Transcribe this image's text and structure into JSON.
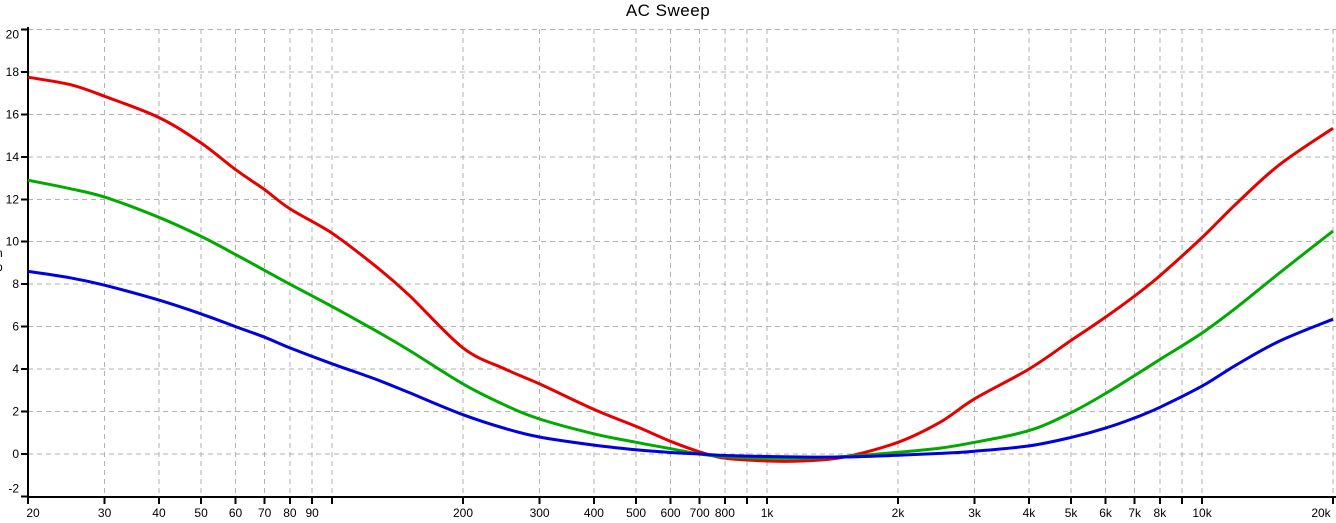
{
  "y_axis_title_fragment": [
    "n",
    "p"
  ],
  "colors": {
    "background": "#ffffff",
    "grid": "#b2b2b2",
    "axis": "#000000",
    "text": "#000000",
    "trace_red": "#e60000",
    "trace_green": "#00aa00",
    "trace_blue": "#0000e0"
  },
  "chart_data": {
    "type": "line",
    "title": "AC Sweep",
    "grid": true,
    "legend": "none",
    "x_axis": {
      "scale": "log",
      "min": 20,
      "max": 20000,
      "tick_values": [
        20,
        30,
        40,
        50,
        60,
        70,
        80,
        90,
        100,
        200,
        300,
        400,
        500,
        600,
        700,
        800,
        900,
        1000,
        2000,
        3000,
        4000,
        5000,
        6000,
        7000,
        8000,
        9000,
        10000,
        20000
      ],
      "tick_labels": [
        "20",
        "30",
        "40",
        "50",
        "60",
        "70",
        "80",
        "90",
        "",
        "200",
        "300",
        "400",
        "500",
        "600",
        "700",
        "800",
        "",
        "1k",
        "2k",
        "3k",
        "4k",
        "5k",
        "6k",
        "7k",
        "8k",
        "",
        "10k",
        "20k"
      ]
    },
    "y_axis": {
      "scale": "linear",
      "min": -2,
      "max": 20,
      "tick_values": [
        20,
        18,
        16,
        14,
        12,
        10,
        8,
        6,
        4,
        2,
        0,
        -2
      ],
      "tick_labels": [
        "20",
        "18",
        "16",
        "14",
        "12",
        "10",
        "8",
        "6",
        "4",
        "2",
        "0",
        "-2"
      ]
    },
    "series": [
      {
        "name": "red-trace",
        "color": "#e60000",
        "points": [
          [
            20,
            17.75
          ],
          [
            25,
            17.4
          ],
          [
            30,
            16.85
          ],
          [
            40,
            15.85
          ],
          [
            50,
            14.65
          ],
          [
            60,
            13.4
          ],
          [
            70,
            12.45
          ],
          [
            80,
            11.55
          ],
          [
            100,
            10.4
          ],
          [
            125,
            8.9
          ],
          [
            150,
            7.5
          ],
          [
            200,
            5.0
          ],
          [
            250,
            4.0
          ],
          [
            300,
            3.3
          ],
          [
            400,
            2.1
          ],
          [
            500,
            1.3
          ],
          [
            600,
            0.6
          ],
          [
            700,
            0.1
          ],
          [
            800,
            -0.2
          ],
          [
            1000,
            -0.33
          ],
          [
            1200,
            -0.33
          ],
          [
            1500,
            -0.15
          ],
          [
            2000,
            0.55
          ],
          [
            2500,
            1.5
          ],
          [
            3000,
            2.6
          ],
          [
            4000,
            4.0
          ],
          [
            5000,
            5.35
          ],
          [
            6000,
            6.45
          ],
          [
            7000,
            7.45
          ],
          [
            8000,
            8.4
          ],
          [
            10000,
            10.2
          ],
          [
            12000,
            11.8
          ],
          [
            15000,
            13.6
          ],
          [
            20000,
            15.35
          ]
        ]
      },
      {
        "name": "green-trace",
        "color": "#00aa00",
        "points": [
          [
            20,
            12.9
          ],
          [
            25,
            12.5
          ],
          [
            30,
            12.1
          ],
          [
            40,
            11.15
          ],
          [
            50,
            10.25
          ],
          [
            60,
            9.4
          ],
          [
            70,
            8.65
          ],
          [
            80,
            8.0
          ],
          [
            100,
            6.95
          ],
          [
            125,
            5.85
          ],
          [
            150,
            4.9
          ],
          [
            200,
            3.3
          ],
          [
            250,
            2.3
          ],
          [
            300,
            1.65
          ],
          [
            400,
            0.95
          ],
          [
            500,
            0.55
          ],
          [
            600,
            0.25
          ],
          [
            700,
            0.0
          ],
          [
            800,
            -0.13
          ],
          [
            1000,
            -0.2
          ],
          [
            1200,
            -0.2
          ],
          [
            1500,
            -0.12
          ],
          [
            2000,
            0.08
          ],
          [
            2500,
            0.28
          ],
          [
            3000,
            0.55
          ],
          [
            4000,
            1.1
          ],
          [
            5000,
            1.95
          ],
          [
            6000,
            2.85
          ],
          [
            7000,
            3.7
          ],
          [
            8000,
            4.45
          ],
          [
            10000,
            5.7
          ],
          [
            12000,
            6.9
          ],
          [
            15000,
            8.5
          ],
          [
            20000,
            10.5
          ]
        ]
      },
      {
        "name": "blue-trace",
        "color": "#0000e0",
        "points": [
          [
            20,
            8.6
          ],
          [
            25,
            8.3
          ],
          [
            30,
            7.95
          ],
          [
            40,
            7.25
          ],
          [
            50,
            6.6
          ],
          [
            60,
            6.0
          ],
          [
            70,
            5.5
          ],
          [
            80,
            5.0
          ],
          [
            100,
            4.25
          ],
          [
            125,
            3.55
          ],
          [
            150,
            2.9
          ],
          [
            200,
            1.85
          ],
          [
            250,
            1.2
          ],
          [
            300,
            0.8
          ],
          [
            400,
            0.42
          ],
          [
            500,
            0.2
          ],
          [
            600,
            0.07
          ],
          [
            700,
            0.0
          ],
          [
            800,
            -0.07
          ],
          [
            1000,
            -0.12
          ],
          [
            1200,
            -0.14
          ],
          [
            1500,
            -0.14
          ],
          [
            2000,
            -0.06
          ],
          [
            2500,
            0.03
          ],
          [
            3000,
            0.13
          ],
          [
            4000,
            0.38
          ],
          [
            5000,
            0.78
          ],
          [
            6000,
            1.22
          ],
          [
            7000,
            1.7
          ],
          [
            8000,
            2.2
          ],
          [
            10000,
            3.2
          ],
          [
            12000,
            4.2
          ],
          [
            15000,
            5.3
          ],
          [
            20000,
            6.35
          ]
        ]
      }
    ]
  }
}
